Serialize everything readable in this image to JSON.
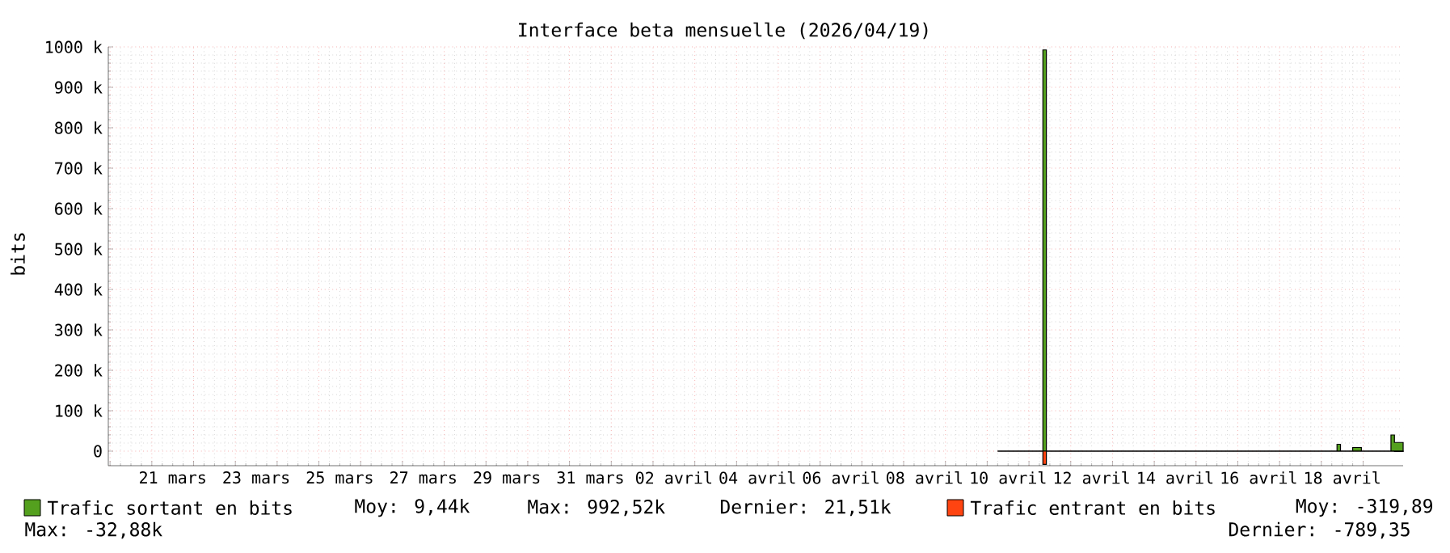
{
  "chart_data": {
    "type": "area",
    "title": "Interface beta mensuelle (2026/04/19)",
    "ylabel": "bits",
    "xlim": [
      "2026-03-19T23:00",
      "2026-04-19T23:00"
    ],
    "ylim": [
      -36,
      1000
    ],
    "yticks": [
      {
        "value": 0,
        "label": "0"
      },
      {
        "value": 100,
        "label": "100 k"
      },
      {
        "value": 200,
        "label": "200 k"
      },
      {
        "value": 300,
        "label": "300 k"
      },
      {
        "value": 400,
        "label": "400 k"
      },
      {
        "value": 500,
        "label": "500 k"
      },
      {
        "value": 600,
        "label": "600 k"
      },
      {
        "value": 700,
        "label": "700 k"
      },
      {
        "value": 800,
        "label": "800 k"
      },
      {
        "value": 900,
        "label": "900 k"
      },
      {
        "value": 1000,
        "label": "1000 k"
      }
    ],
    "xticks": [
      {
        "value": "2026-03-20",
        "label": null
      },
      {
        "value": "2026-03-21",
        "label": null
      },
      {
        "value": "2026-03-22",
        "label": null
      },
      {
        "value": "2026-03-23",
        "label": null
      },
      {
        "value": "2026-03-24",
        "label": null
      },
      {
        "value": "2026-03-25",
        "label": null
      },
      {
        "value": "2026-03-26",
        "label": null
      },
      {
        "value": "2026-03-27",
        "label": null
      },
      {
        "value": "2026-03-28",
        "label": null
      },
      {
        "value": "2026-03-29",
        "label": null
      },
      {
        "value": "2026-03-30",
        "label": null
      },
      {
        "value": "2026-03-31",
        "label": null
      },
      {
        "value": "2026-04-01",
        "label": null
      },
      {
        "value": "2026-04-02",
        "label": null
      },
      {
        "value": "2026-04-03",
        "label": null
      },
      {
        "value": "2026-04-04",
        "label": null
      },
      {
        "value": "2026-04-05",
        "label": null
      },
      {
        "value": "2026-04-06",
        "label": null
      },
      {
        "value": "2026-04-07",
        "label": null
      },
      {
        "value": "2026-04-08",
        "label": null
      },
      {
        "value": "2026-04-09",
        "label": null
      },
      {
        "value": "2026-04-10",
        "label": null
      },
      {
        "value": "2026-04-11",
        "label": null
      },
      {
        "value": "2026-04-12",
        "label": null
      },
      {
        "value": "2026-04-13",
        "label": null
      },
      {
        "value": "2026-04-14",
        "label": null
      },
      {
        "value": "2026-04-15",
        "label": null
      },
      {
        "value": "2026-04-16",
        "label": null
      },
      {
        "value": "2026-04-17",
        "label": null
      },
      {
        "value": "2026-04-18",
        "label": null
      },
      {
        "value": "2026-04-19",
        "label": null
      },
      {
        "value": "2026-03-21T12:00",
        "label": "21 mars"
      },
      {
        "value": "2026-03-23T12:00",
        "label": "23 mars"
      },
      {
        "value": "2026-03-25T12:00",
        "label": "25 mars"
      },
      {
        "value": "2026-03-27T12:00",
        "label": "27 mars"
      },
      {
        "value": "2026-03-29T12:00",
        "label": "29 mars"
      },
      {
        "value": "2026-03-31T12:00",
        "label": "31 mars"
      },
      {
        "value": "2026-04-02T12:00",
        "label": "02 avril"
      },
      {
        "value": "2026-04-04T12:00",
        "label": "04 avril"
      },
      {
        "value": "2026-04-06T12:00",
        "label": "06 avril"
      },
      {
        "value": "2026-04-08T12:00",
        "label": "08 avril"
      },
      {
        "value": "2026-04-10T12:00",
        "label": "10 avril"
      },
      {
        "value": "2026-04-12T12:00",
        "label": "12 avril"
      },
      {
        "value": "2026-04-14T12:00",
        "label": "14 avril"
      },
      {
        "value": "2026-04-16T12:00",
        "label": "16 avril"
      },
      {
        "value": "2026-04-18T12:00",
        "label": "18 avril"
      }
    ],
    "grid": true,
    "legend": "bottom",
    "series": [
      {
        "name": "Trafic sortant en bits",
        "color": "#54a01e",
        "x": [
          "2026-04-10T06:00",
          "2026-04-11T08:00",
          "2026-04-11T10:00",
          "2026-04-18T09:00",
          "2026-04-18T11:00",
          "2026-04-18T18:00",
          "2026-04-18T23:00",
          "2026-04-19T16:00",
          "2026-04-19T18:00",
          "2026-04-19T23:00"
        ],
        "values": [
          0,
          992.52,
          0,
          17,
          0,
          9,
          0,
          40,
          21.51,
          21.51
        ]
      },
      {
        "name": "Trafic entrant en bits",
        "color": "#ff4411",
        "x": [
          "2026-04-10T06:00",
          "2026-04-11T08:00",
          "2026-04-11T10:00",
          "2026-04-19T18:00",
          "2026-04-19T23:00"
        ],
        "values": [
          0,
          -32.88,
          0,
          -0.79,
          -0.79
        ]
      }
    ],
    "annotations": [
      "Moy: 9,44k",
      "Max: 992,52k",
      "Dernier: 21,51k",
      "Moy: -319,89",
      "Max: -32,88k",
      "Dernier: -789,35"
    ]
  }
}
